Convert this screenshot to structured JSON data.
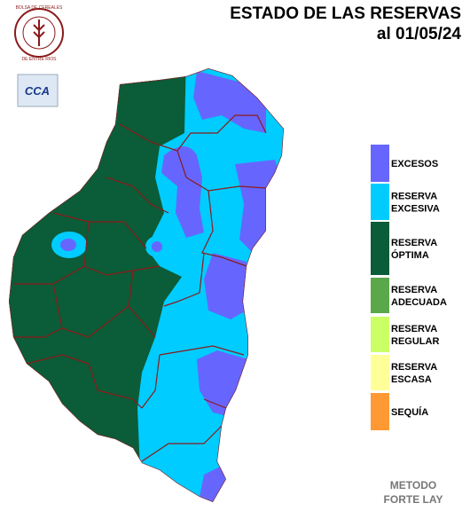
{
  "header": {
    "title": "ESTADO DE LAS RESERVAS",
    "date": "al 01/05/24"
  },
  "logos": {
    "bolsa_top": "BOLSA DE CEREALES",
    "bolsa_bottom": "DE ENTRE RIOS",
    "cca": "CCA"
  },
  "legend": [
    {
      "lines": [
        "EXCESOS"
      ],
      "color": "#6666ff"
    },
    {
      "lines": [
        "RESERVA",
        "EXCESIVA"
      ],
      "color": "#00ccff"
    },
    {
      "lines": [
        "RESERVA",
        "ÓPTIMA"
      ],
      "color": "#0b5c38"
    },
    {
      "lines": [
        "RESERVA",
        "ADECUADA"
      ],
      "color": "#5aa84a"
    },
    {
      "lines": [
        "RESERVA",
        "REGULAR"
      ],
      "color": "#ccff66"
    },
    {
      "lines": [
        "RESERVA",
        "ESCASA"
      ],
      "color": "#ffff99"
    },
    {
      "lines": [
        "SEQUÍA"
      ],
      "color": "#ff9933"
    }
  ],
  "footer": {
    "lines": [
      "METODO",
      "FORTE LAY"
    ]
  }
}
